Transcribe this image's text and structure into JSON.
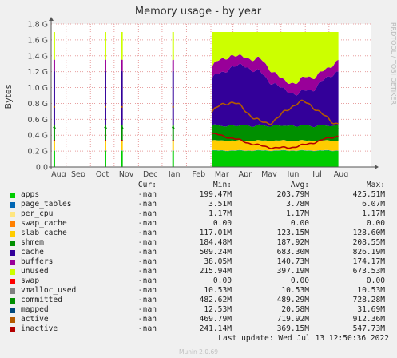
{
  "chart_data": {
    "type": "area",
    "title": "Memory usage - by year",
    "ylabel": "Bytes",
    "side_label": "RRDTOOL / TOBI OETIKER",
    "ylim": [
      0,
      1800000000
    ],
    "yticks": [
      "0.0",
      "0.2 G",
      "0.4 G",
      "0.6 G",
      "0.8 G",
      "1.0 G",
      "1.2 G",
      "1.4 G",
      "1.6 G",
      "1.8 G"
    ],
    "xticks": [
      "Aug",
      "Sep",
      "Oct",
      "Nov",
      "Dec",
      "Jan",
      "Feb",
      "Mar",
      "Apr",
      "May",
      "Jun",
      "Jul",
      "Aug"
    ],
    "time_range": [
      "2021-07-13",
      "2022-08-24"
    ],
    "data_ranges": [
      [
        "2021-07-16",
        "2021-07-18"
      ],
      [
        "2021-09-19",
        "2021-09-21"
      ],
      [
        "2021-10-10",
        "2021-10-12"
      ],
      [
        "2021-12-14",
        "2021-12-16"
      ],
      [
        "2022-02-02",
        "2022-07-13"
      ]
    ],
    "series": [
      {
        "name": "apps",
        "color": "#00cc00",
        "avg": 203790000
      },
      {
        "name": "page_tables",
        "color": "#0066b3",
        "avg": 3780000
      },
      {
        "name": "per_cpu",
        "color": "#ffe680",
        "avg": 1170000
      },
      {
        "name": "swap_cache",
        "color": "#ff8000",
        "avg": 0
      },
      {
        "name": "slab_cache",
        "color": "#ffcc00",
        "avg": 123150000
      },
      {
        "name": "shmem",
        "color": "#008f00",
        "avg": 187920000
      },
      {
        "name": "cache",
        "color": "#330099",
        "avg": 683300000
      },
      {
        "name": "buffers",
        "color": "#990099",
        "avg": 140730000
      },
      {
        "name": "unused",
        "color": "#ccff00",
        "avg": 397190000
      },
      {
        "name": "swap",
        "color": "#ff0000",
        "avg": 0
      },
      {
        "name": "vmalloc_used",
        "color": "#808080",
        "avg": 10530000
      },
      {
        "name": "committed",
        "color": "#008f00",
        "avg": 489290000
      },
      {
        "name": "mapped",
        "color": "#00487d",
        "avg": 20580000
      },
      {
        "name": "active",
        "color": "#b35a00",
        "avg": 719920000
      },
      {
        "name": "inactive",
        "color": "#b30000",
        "avg": 369150000
      }
    ]
  },
  "legend": {
    "headers": [
      "Cur:",
      "Min:",
      "Avg:",
      "Max:"
    ],
    "rows": [
      {
        "name": "apps",
        "color": "#00cc00",
        "cur": "-nan",
        "min": "199.47M",
        "avg": "203.79M",
        "max": "425.51M"
      },
      {
        "name": "page_tables",
        "color": "#0066b3",
        "cur": "-nan",
        "min": "3.51M",
        "avg": "3.78M",
        "max": "6.07M"
      },
      {
        "name": "per_cpu",
        "color": "#ffe680",
        "cur": "-nan",
        "min": "1.17M",
        "avg": "1.17M",
        "max": "1.17M"
      },
      {
        "name": "swap_cache",
        "color": "#ff8000",
        "cur": "-nan",
        "min": "0.00",
        "avg": "0.00",
        "max": "0.00"
      },
      {
        "name": "slab_cache",
        "color": "#ffcc00",
        "cur": "-nan",
        "min": "117.01M",
        "avg": "123.15M",
        "max": "128.60M"
      },
      {
        "name": "shmem",
        "color": "#008f00",
        "cur": "-nan",
        "min": "184.48M",
        "avg": "187.92M",
        "max": "208.55M"
      },
      {
        "name": "cache",
        "color": "#330099",
        "cur": "-nan",
        "min": "509.24M",
        "avg": "683.30M",
        "max": "826.19M"
      },
      {
        "name": "buffers",
        "color": "#990099",
        "cur": "-nan",
        "min": "38.05M",
        "avg": "140.73M",
        "max": "174.17M"
      },
      {
        "name": "unused",
        "color": "#ccff00",
        "cur": "-nan",
        "min": "215.94M",
        "avg": "397.19M",
        "max": "673.53M"
      },
      {
        "name": "swap",
        "color": "#ff0000",
        "cur": "-nan",
        "min": "0.00",
        "avg": "0.00",
        "max": "0.00"
      },
      {
        "name": "vmalloc_used",
        "color": "#808080",
        "cur": "-nan",
        "min": "10.53M",
        "avg": "10.53M",
        "max": "10.53M"
      },
      {
        "name": "committed",
        "color": "#008f00",
        "cur": "-nan",
        "min": "482.62M",
        "avg": "489.29M",
        "max": "728.28M"
      },
      {
        "name": "mapped",
        "color": "#00487d",
        "cur": "-nan",
        "min": "12.53M",
        "avg": "20.58M",
        "max": "31.69M"
      },
      {
        "name": "active",
        "color": "#b35a00",
        "cur": "-nan",
        "min": "469.79M",
        "avg": "719.92M",
        "max": "912.36M"
      },
      {
        "name": "inactive",
        "color": "#b30000",
        "cur": "-nan",
        "min": "241.14M",
        "avg": "369.15M",
        "max": "547.73M"
      }
    ]
  },
  "last_update": "Last update: Wed Jul 13 12:50:36 2022",
  "munin_version": "Munin 2.0.69"
}
